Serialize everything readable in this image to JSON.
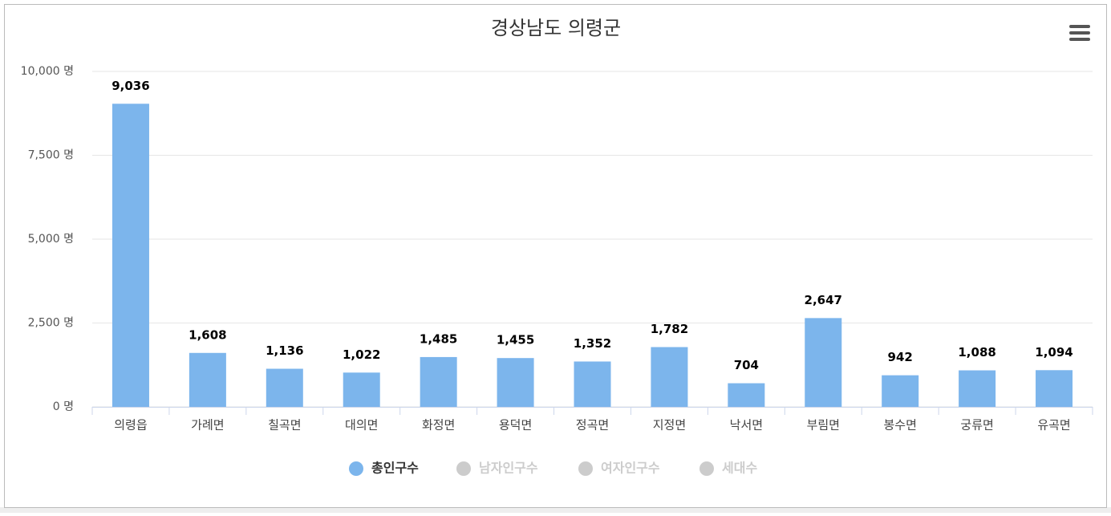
{
  "chart_data": {
    "type": "bar",
    "title": "경상남도 의령군",
    "categories": [
      "의령읍",
      "가례면",
      "칠곡면",
      "대의면",
      "화정면",
      "용덕면",
      "정곡면",
      "지정면",
      "낙서면",
      "부림면",
      "봉수면",
      "궁류면",
      "유곡면"
    ],
    "series": [
      {
        "name": "총인구수",
        "color": "#7cb5ec",
        "values": [
          9036,
          1608,
          1136,
          1022,
          1485,
          1455,
          1352,
          1782,
          704,
          2647,
          942,
          1088,
          1094
        ],
        "value_labels": [
          "9,036",
          "1,608",
          "1,136",
          "1,022",
          "1,485",
          "1,455",
          "1,352",
          "1,782",
          "704",
          "2,647",
          "942",
          "1,088",
          "1,094"
        ]
      }
    ],
    "hidden_series": [
      {
        "name": "남자인구수",
        "color": "#cccccc"
      },
      {
        "name": "여자인구수",
        "color": "#cccccc"
      },
      {
        "name": "세대수",
        "color": "#cccccc"
      }
    ],
    "ylim": [
      0,
      10000
    ],
    "yticks": [
      {
        "value": 0,
        "label": "0 명"
      },
      {
        "value": 2500,
        "label": "2,500 명"
      },
      {
        "value": 5000,
        "label": "5,000 명"
      },
      {
        "value": 7500,
        "label": "7,500 명"
      },
      {
        "value": 10000,
        "label": "10,000 명"
      }
    ],
    "grid": true,
    "legend": "bottom"
  }
}
